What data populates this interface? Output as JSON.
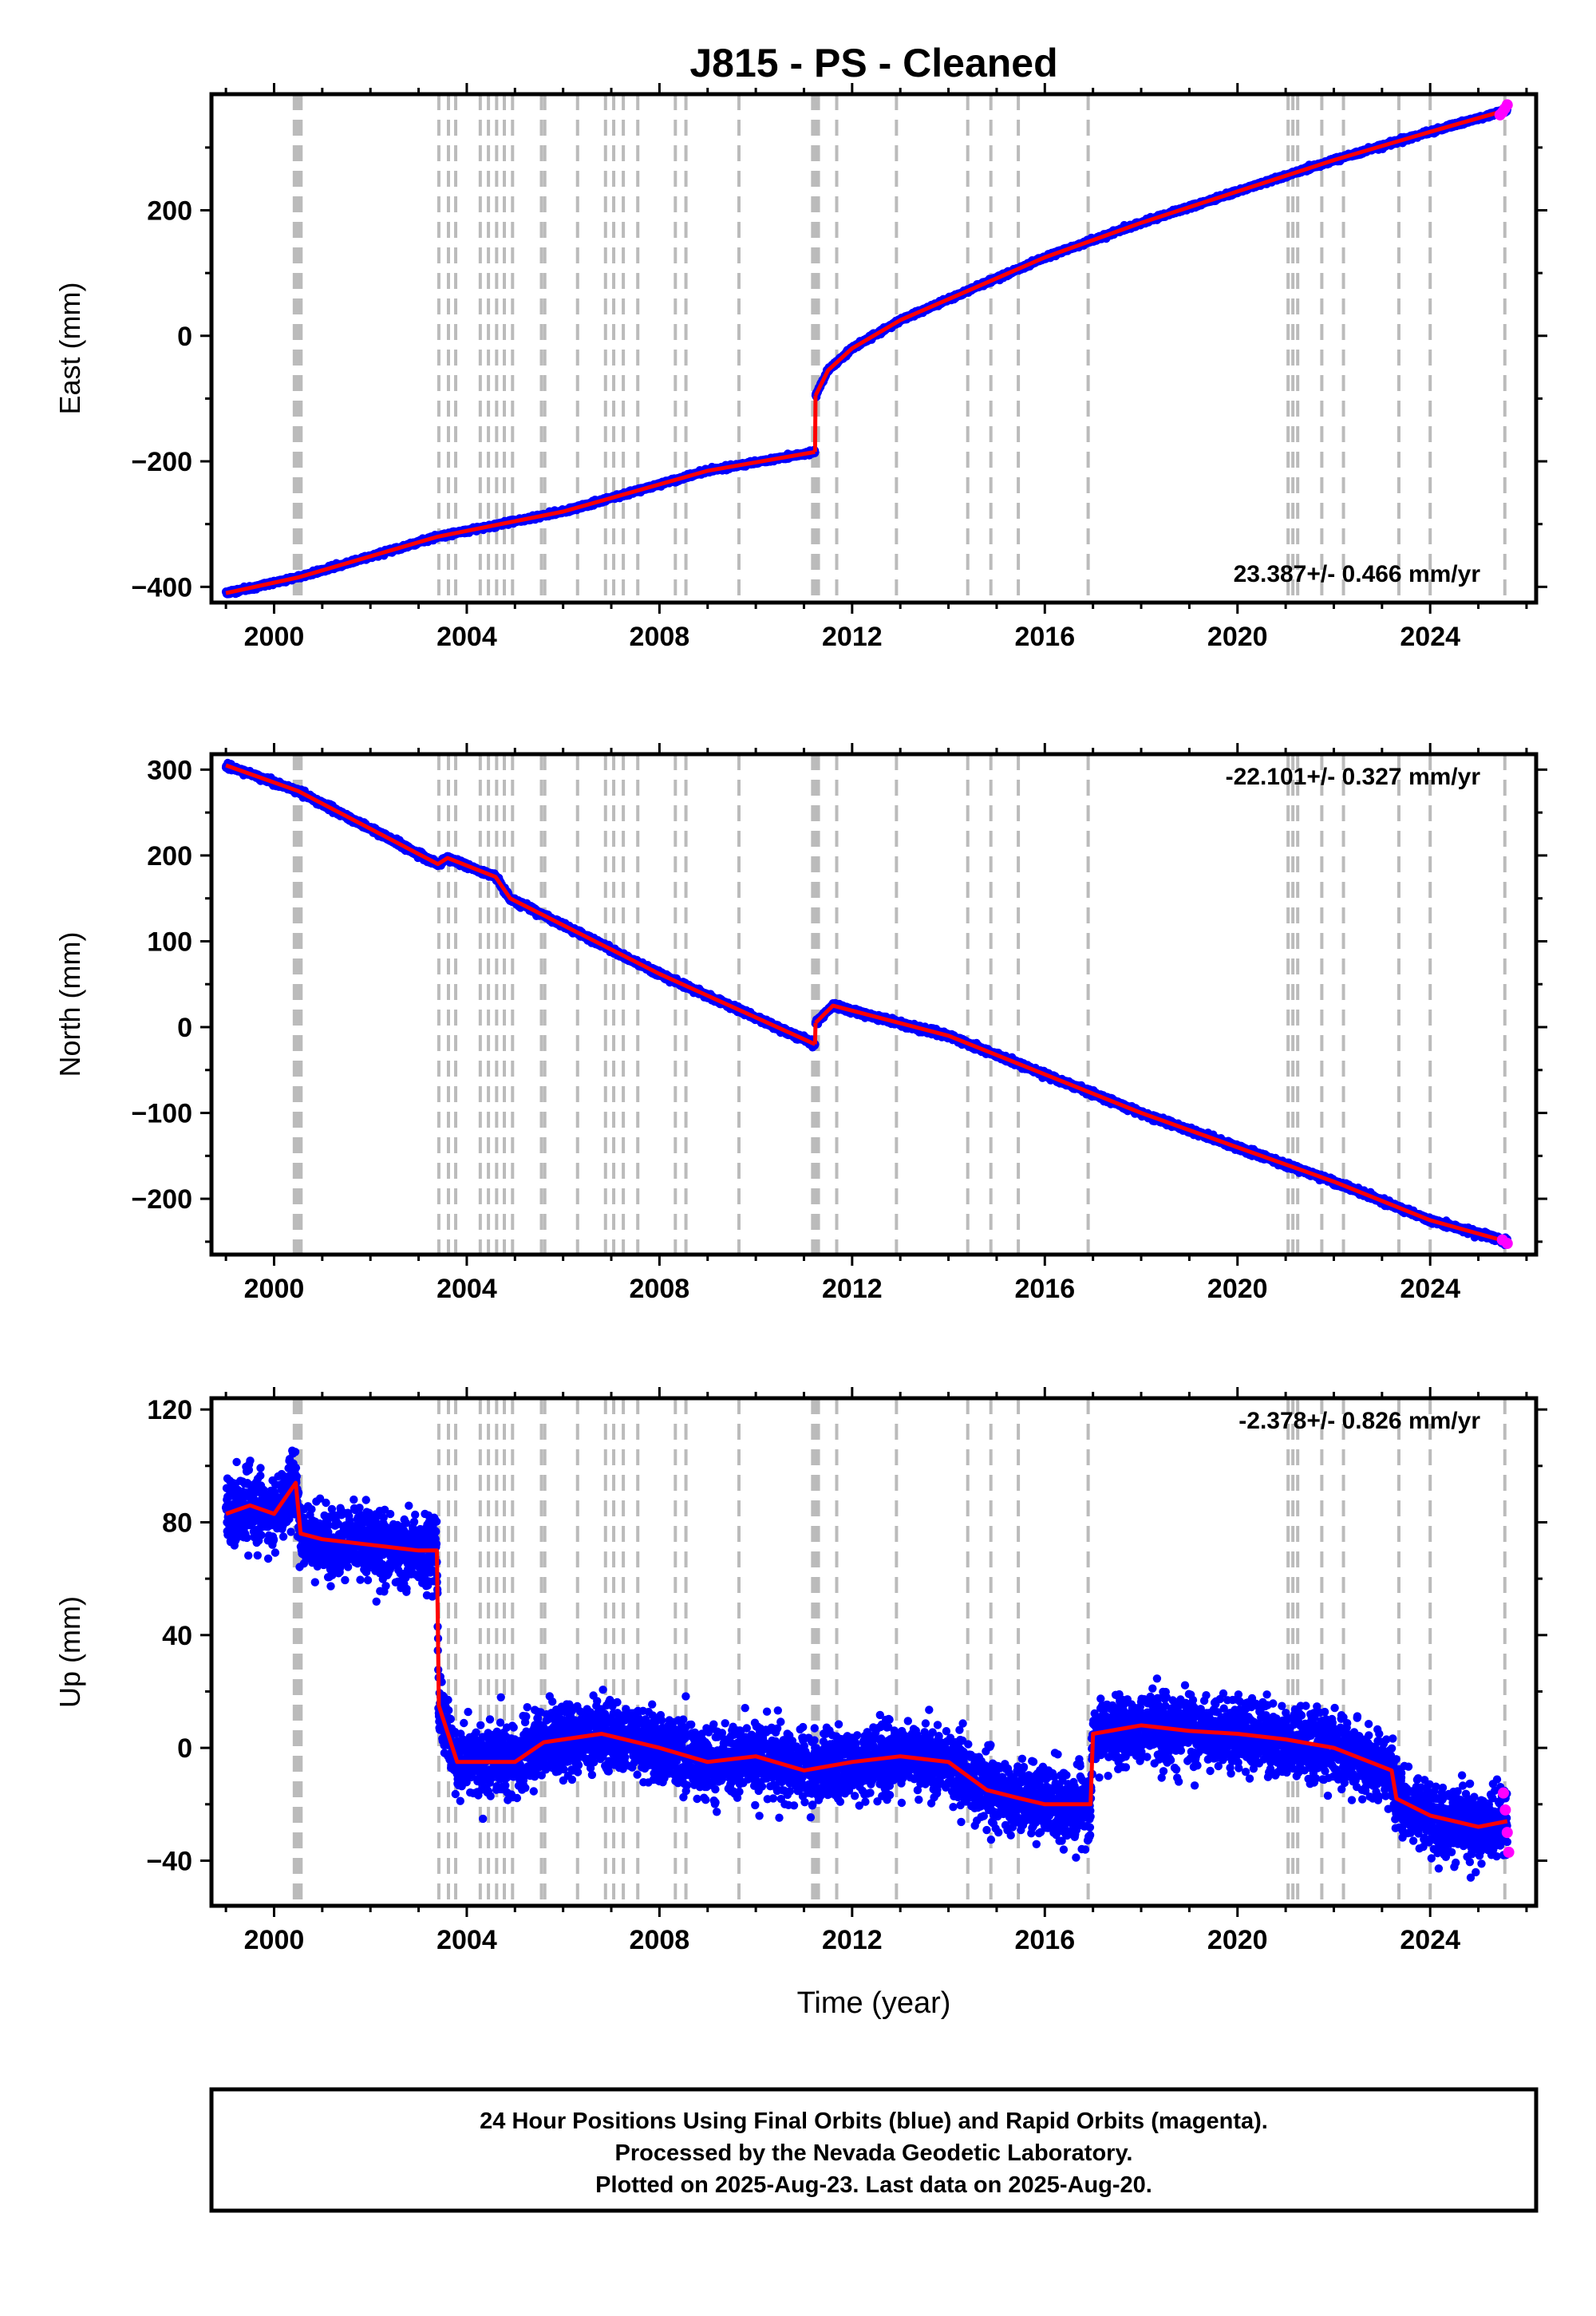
{
  "figure": {
    "title": "J815  - PS - Cleaned",
    "xlabel": "Time (year)",
    "footer": [
      "24 Hour Positions Using Final Orbits (blue) and Rapid Orbits (magenta).",
      "Processed by the Nevada Geodetic Laboratory.",
      "Plotted on 2025-Aug-23. Last data on 2025-Aug-20."
    ],
    "colors": {
      "final": "#0000ff",
      "rapid": "#ff00ff",
      "model": "#ff0000",
      "steps": "#bbbbbb"
    }
  },
  "chart_data": [
    {
      "type": "scatter",
      "ylabel": "East (mm)",
      "rate": "23.387+/- 0.466 mm/yr",
      "rate_position": "bottom-right",
      "xlim": [
        1998.7,
        2026.2
      ],
      "ylim": [
        -425,
        385
      ],
      "xticks": [
        2000,
        2004,
        2008,
        2012,
        2016,
        2020,
        2024
      ],
      "yticks": [
        -400,
        -200,
        0,
        200
      ],
      "series": [
        {
          "x": [
            1999.0,
            2000.5,
            2003.4,
            2006.0,
            2009.0,
            2011.23
          ],
          "y": [
            -410,
            -385,
            -320,
            -280,
            -215,
            -185
          ]
        },
        {
          "x": [
            2011.24,
            2011.5,
            2012.0,
            2013.0,
            2014.5,
            2016.0,
            2018.0,
            2020.0,
            2022.0,
            2024.0,
            2025.6
          ],
          "y": [
            -95,
            -55,
            -20,
            25,
            75,
            125,
            180,
            230,
            280,
            325,
            360
          ]
        }
      ],
      "rapid_points": {
        "x": [
          2025.45,
          2025.5,
          2025.55,
          2025.6
        ],
        "y": [
          352,
          356,
          362,
          368
        ]
      }
    },
    {
      "type": "scatter",
      "ylabel": "North (mm)",
      "rate": "-22.101+/- 0.327 mm/yr",
      "rate_position": "top-right",
      "xlim": [
        1998.7,
        2026.2
      ],
      "ylim": [
        -265,
        318
      ],
      "xticks": [
        2000,
        2004,
        2008,
        2012,
        2016,
        2020,
        2024
      ],
      "yticks": [
        -200,
        -100,
        0,
        100,
        200,
        300
      ],
      "series": [
        {
          "x": [
            1999.0,
            2000.5,
            2003.4,
            2003.6,
            2004.6,
            2004.9,
            2008.0,
            2011.23
          ],
          "y": [
            305,
            275,
            190,
            197,
            175,
            150,
            62,
            -20
          ]
        },
        {
          "x": [
            2011.24,
            2011.6,
            2014.0,
            2016.0,
            2018.0,
            2020.0,
            2022.0,
            2024.0,
            2025.6
          ],
          "y": [
            5,
            25,
            -10,
            -55,
            -100,
            -140,
            -180,
            -225,
            -250
          ]
        }
      ],
      "rapid_points": {
        "x": [
          2025.5,
          2025.6
        ],
        "y": [
          -248,
          -252
        ]
      }
    },
    {
      "type": "scatter",
      "ylabel": "Up (mm)",
      "rate": "-2.378+/- 0.826 mm/yr",
      "rate_position": "top-right",
      "xlim": [
        1998.7,
        2026.2
      ],
      "ylim": [
        -56,
        124
      ],
      "xticks": [
        2000,
        2004,
        2008,
        2012,
        2016,
        2020,
        2024
      ],
      "yticks": [
        -40,
        0,
        40,
        80,
        120
      ],
      "x": [
        1999.0,
        1999.5,
        2000.0,
        2000.45,
        2000.55,
        2001.0,
        2002.0,
        2003.0,
        2003.38,
        2003.42,
        2003.8,
        2005.0,
        2005.6,
        2006.8,
        2008.0,
        2009.0,
        2010.0,
        2011.0,
        2012.0,
        2013.0,
        2014.0,
        2014.8,
        2015.5,
        2016.0,
        2016.95,
        2017.0,
        2018.0,
        2019.0,
        2020.0,
        2021.0,
        2022.0,
        2023.2,
        2023.3,
        2024.0,
        2025.0,
        2025.6
      ],
      "y": [
        83,
        86,
        83,
        94,
        76,
        74,
        72,
        70,
        70,
        15,
        -5,
        -5,
        2,
        5,
        0,
        -5,
        -3,
        -8,
        -5,
        -3,
        -5,
        -15,
        -18,
        -20,
        -20,
        5,
        8,
        6,
        5,
        3,
        0,
        -8,
        -18,
        -24,
        -28,
        -26
      ],
      "scatter": 8.5,
      "rapid_points": {
        "x": [
          2025.52,
          2025.56,
          2025.6,
          2025.63
        ],
        "y": [
          -16,
          -22,
          -30,
          -37
        ]
      }
    }
  ],
  "step_epochs": [
    2000.42,
    2000.47,
    2000.52,
    2000.56,
    2003.42,
    2003.62,
    2003.77,
    2004.28,
    2004.45,
    2004.62,
    2004.78,
    2004.95,
    2005.55,
    2005.62,
    2006.3,
    2006.88,
    2007.05,
    2007.25,
    2007.55,
    2008.33,
    2008.55,
    2009.65,
    2011.18,
    2011.22,
    2011.25,
    2011.3,
    2011.68,
    2012.92,
    2014.4,
    2014.88,
    2015.45,
    2016.9,
    2021.05,
    2021.15,
    2021.25,
    2021.75,
    2022.2,
    2023.35,
    2024.0,
    2025.55
  ]
}
